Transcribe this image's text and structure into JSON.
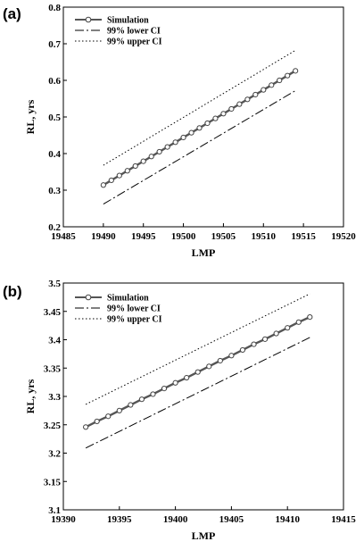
{
  "chart_data": [
    {
      "panel_label": "(a)",
      "type": "line",
      "xlabel": "LMP",
      "ylabel": "RL, yrs",
      "xlim": [
        19485,
        19520
      ],
      "ylim": [
        0.2,
        0.8
      ],
      "xticks": [
        19485,
        19490,
        19495,
        19500,
        19505,
        19510,
        19515,
        19520
      ],
      "xtick_labels": [
        "19485",
        "19490",
        "19495",
        "19500",
        "19505",
        "19510",
        "19515",
        "19520"
      ],
      "yticks": [
        0.2,
        0.3,
        0.4,
        0.5,
        0.6,
        0.7,
        0.8
      ],
      "ytick_labels": [
        "0.2",
        "0.3",
        "0.4",
        "0.5",
        "0.6",
        "0.7",
        "0.8"
      ],
      "grid": false,
      "legend_position": "top-left",
      "series": [
        {
          "name": "Simulation",
          "style": "solid-circles",
          "x": [
            19490,
            19491,
            19492,
            19493,
            19494,
            19495,
            19496,
            19497,
            19498,
            19499,
            19500,
            19501,
            19502,
            19503,
            19504,
            19505,
            19506,
            19507,
            19508,
            19509,
            19510,
            19511,
            19512,
            19513,
            19514
          ],
          "y": [
            0.314,
            0.327,
            0.34,
            0.353,
            0.366,
            0.379,
            0.392,
            0.405,
            0.418,
            0.431,
            0.444,
            0.457,
            0.47,
            0.483,
            0.496,
            0.509,
            0.522,
            0.535,
            0.548,
            0.561,
            0.574,
            0.587,
            0.6,
            0.613,
            0.626
          ]
        },
        {
          "name": "99% lower CI",
          "style": "dashdot",
          "x": [
            19490,
            19514
          ],
          "y": [
            0.262,
            0.572
          ]
        },
        {
          "name": "99% upper CI",
          "style": "dotted",
          "x": [
            19490,
            19514
          ],
          "y": [
            0.368,
            0.682
          ]
        }
      ]
    },
    {
      "panel_label": "(b)",
      "type": "line",
      "xlabel": "LMP",
      "ylabel": "RL, yrs",
      "xlim": [
        19390,
        19415
      ],
      "ylim": [
        3.1,
        3.5
      ],
      "xticks": [
        19390,
        19395,
        19400,
        19405,
        19410,
        19415
      ],
      "xtick_labels": [
        "19390",
        "19395",
        "19400",
        "19405",
        "19410",
        "19415"
      ],
      "yticks": [
        3.1,
        3.15,
        3.2,
        3.25,
        3.3,
        3.35,
        3.4,
        3.45,
        3.5
      ],
      "ytick_labels": [
        "3.1",
        "3.15",
        "3.2",
        "3.25",
        "3.3",
        "3.35",
        "3.4",
        "3.45",
        "3.5"
      ],
      "grid": false,
      "legend_position": "top-left",
      "series": [
        {
          "name": "Simulation",
          "style": "solid-circles",
          "x": [
            19392,
            19393,
            19394,
            19395,
            19396,
            19397,
            19398,
            19399,
            19400,
            19401,
            19402,
            19403,
            19404,
            19405,
            19406,
            19407,
            19408,
            19409,
            19410,
            19411,
            19412
          ],
          "y": [
            3.246,
            3.256,
            3.265,
            3.275,
            3.285,
            3.295,
            3.304,
            3.314,
            3.324,
            3.333,
            3.343,
            3.353,
            3.363,
            3.372,
            3.382,
            3.392,
            3.401,
            3.411,
            3.421,
            3.431,
            3.44
          ]
        },
        {
          "name": "99% lower CI",
          "style": "dashdot",
          "x": [
            19392,
            19412
          ],
          "y": [
            3.209,
            3.404
          ]
        },
        {
          "name": "99% upper CI",
          "style": "dotted",
          "x": [
            19392,
            19412
          ],
          "y": [
            3.286,
            3.481
          ]
        }
      ]
    }
  ]
}
